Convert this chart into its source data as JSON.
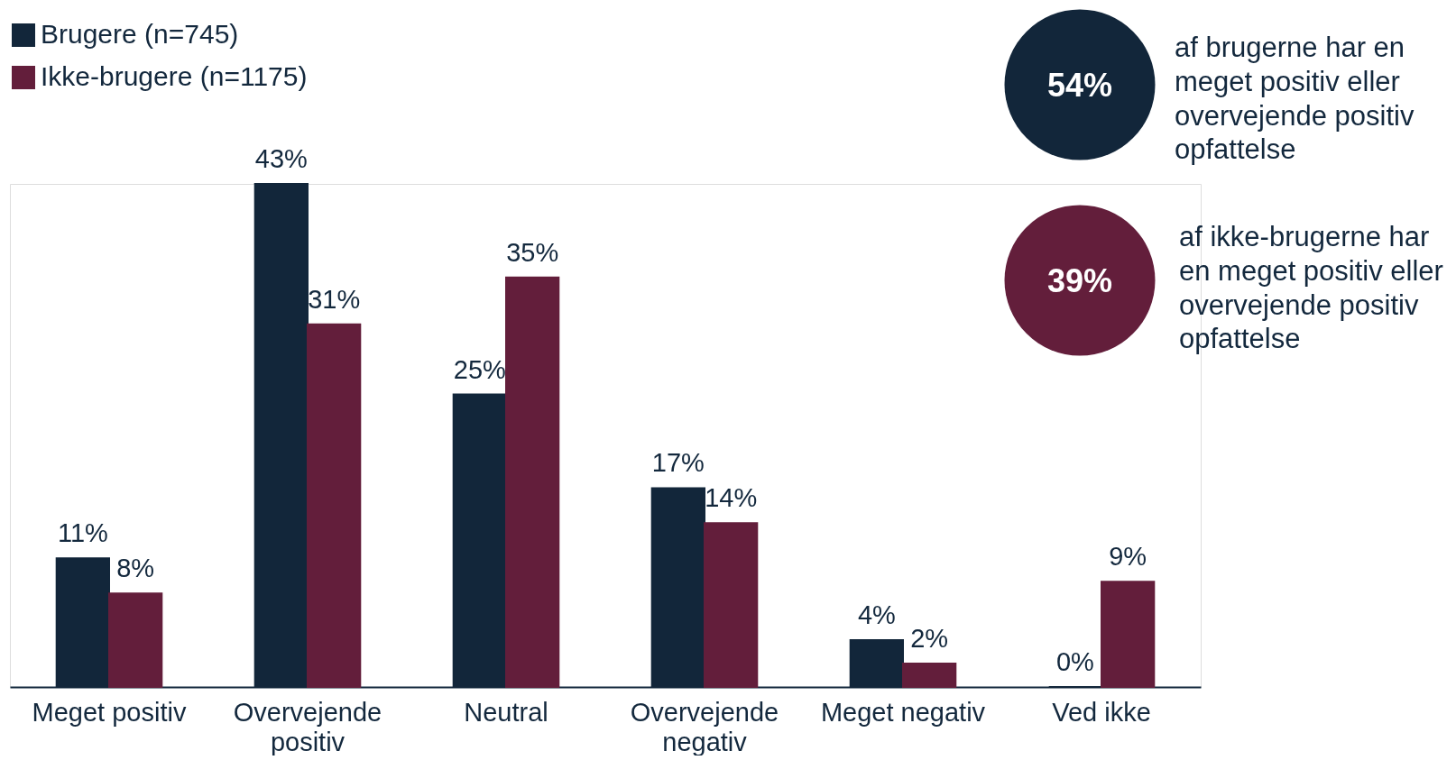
{
  "chart_data": {
    "type": "bar",
    "categories": [
      "Meget positiv",
      "Overvejende positiv",
      "Neutral",
      "Overvejende negativ",
      "Meget negativ",
      "Ved ikke"
    ],
    "series": [
      {
        "name": "Brugere (n=745)",
        "color": "#12263a",
        "values": [
          11,
          43,
          25,
          17,
          4,
          0
        ],
        "value_labels": [
          "11%",
          "43%",
          "25%",
          "17%",
          "4%",
          "0%"
        ]
      },
      {
        "name": "Ikke-brugere (n=1175)",
        "color": "#631e3b",
        "values": [
          8,
          31,
          35,
          14,
          2,
          9
        ],
        "value_labels": [
          "8%",
          "31%",
          "35%",
          "14%",
          "2%",
          "9%"
        ]
      }
    ],
    "tick_labels": "x",
    "legend": "top left",
    "annotations": [
      "54%",
      "af brugerne har en meget positiv eller overvejende positiv opfattelse",
      "39%",
      "af ikke-brugerne har en meget positiv eller overvejende positiv opfattelse"
    ]
  }
}
